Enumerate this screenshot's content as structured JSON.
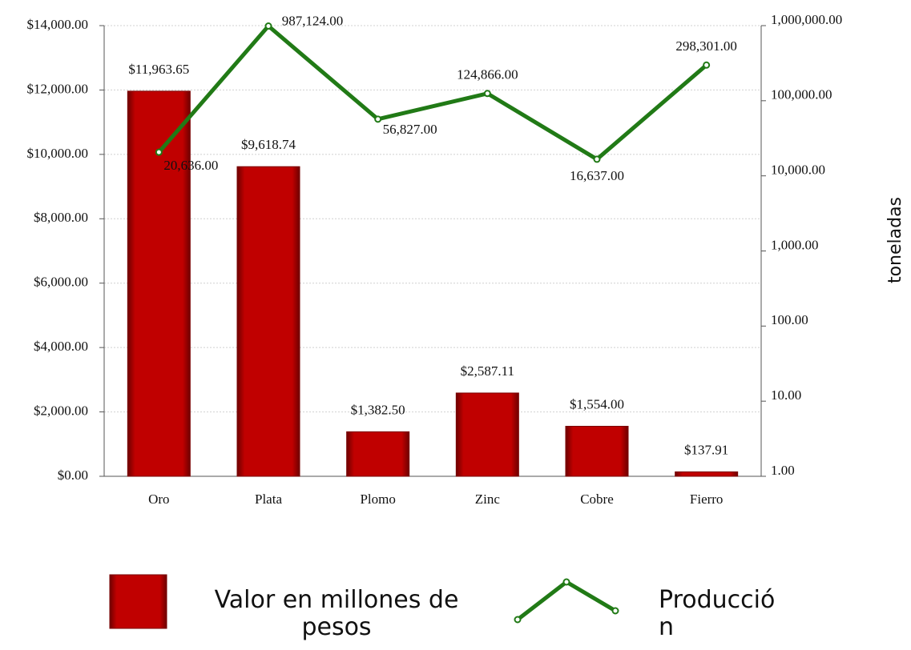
{
  "chart_data": {
    "type": "bar",
    "categories": [
      "Oro",
      "Plata",
      "Plomo",
      "Zinc",
      "Cobre",
      "Fierro"
    ],
    "series": [
      {
        "name": "Valor en millones de pesos",
        "type": "bar",
        "color": "#c00000",
        "values": [
          11963.65,
          9618.74,
          1382.5,
          2587.11,
          1554.0,
          137.91
        ],
        "value_labels": [
          "$11,963.65",
          "$9,618.74",
          "$1,382.50",
          "$2,587.11",
          "$1,554.00",
          "$137.91"
        ]
      },
      {
        "name": "Producción",
        "type": "line",
        "color": "#217a16",
        "axis": "y2",
        "values": [
          20636,
          987124,
          56827,
          124866,
          16637,
          298301
        ],
        "value_labels": [
          "20,636.00",
          "987,124.00",
          "56,827.00",
          "124,866.00",
          "16,637.00",
          "298,301.00"
        ]
      }
    ],
    "ylim": [
      0,
      14000
    ],
    "yticks": [
      {
        "value": 0,
        "label": "$0.00"
      },
      {
        "value": 2000,
        "label": "$2,000.00"
      },
      {
        "value": 4000,
        "label": "$4,000.00"
      },
      {
        "value": 6000,
        "label": "$6,000.00"
      },
      {
        "value": 8000,
        "label": "$8,000.00"
      },
      {
        "value": 10000,
        "label": "$10,000.00"
      },
      {
        "value": 12000,
        "label": "$12,000.00"
      },
      {
        "value": 14000,
        "label": "$14,000.00"
      }
    ],
    "y2lim": [
      1,
      1000000
    ],
    "y2log": true,
    "y2ticks": [
      {
        "value": 1,
        "label": "1.00"
      },
      {
        "value": 10,
        "label": "10.00"
      },
      {
        "value": 100,
        "label": "100.00"
      },
      {
        "value": 1000,
        "label": "1,000.00"
      },
      {
        "value": 10000,
        "label": "10,000.00"
      },
      {
        "value": 100000,
        "label": "100,000.00"
      },
      {
        "value": 1000000,
        "label": "1,000,000.00"
      }
    ],
    "y2label": "toneladas",
    "grid": true
  }
}
